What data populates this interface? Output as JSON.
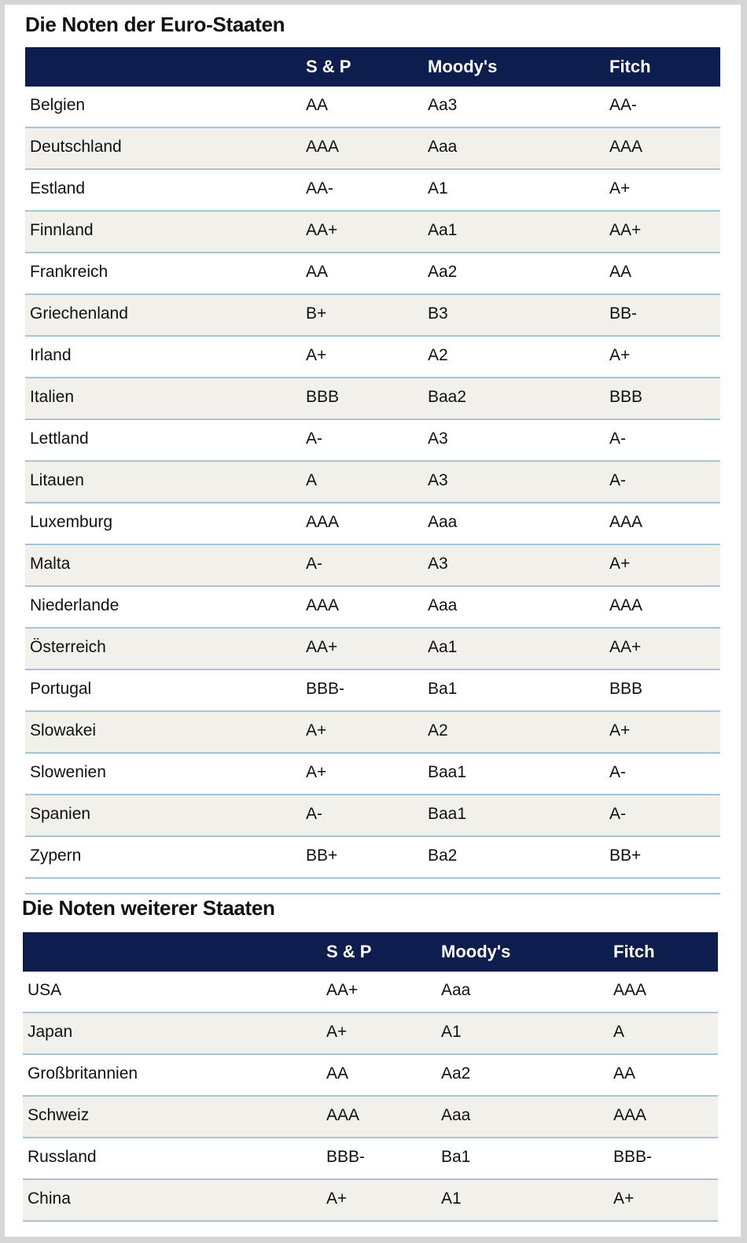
{
  "euro": {
    "title": "Die Noten der Euro-Staaten",
    "headers": [
      "",
      "S & P",
      "Moody's",
      "Fitch"
    ],
    "rows": [
      [
        "Belgien",
        "AA",
        "Aa3",
        "AA-"
      ],
      [
        "Deutschland",
        "AAA",
        "Aaa",
        "AAA"
      ],
      [
        "Estland",
        "AA-",
        "A1",
        "A+"
      ],
      [
        "Finnland",
        "AA+",
        "Aa1",
        "AA+"
      ],
      [
        "Frankreich",
        "AA",
        "Aa2",
        "AA"
      ],
      [
        "Griechenland",
        "B+",
        "B3",
        "BB-"
      ],
      [
        "Irland",
        "A+",
        "A2",
        "A+"
      ],
      [
        "Italien",
        "BBB",
        "Baa2",
        "BBB"
      ],
      [
        "Lettland",
        "A-",
        "A3",
        "A-"
      ],
      [
        "Litauen",
        "A",
        "A3",
        "A-"
      ],
      [
        "Luxemburg",
        "AAA",
        "Aaa",
        "AAA"
      ],
      [
        "Malta",
        "A-",
        "A3",
        "A+"
      ],
      [
        "Niederlande",
        "AAA",
        "Aaa",
        "AAA"
      ],
      [
        "Österreich",
        "AA+",
        "Aa1",
        "AA+"
      ],
      [
        "Portugal",
        "BBB-",
        "Ba1",
        "BBB"
      ],
      [
        "Slowakei",
        "A+",
        "A2",
        "A+"
      ],
      [
        "Slowenien",
        "A+",
        "Baa1",
        "A-"
      ],
      [
        "Spanien",
        "A-",
        "Baa1",
        "A-"
      ],
      [
        "Zypern",
        "BB+",
        "Ba2",
        "BB+"
      ]
    ]
  },
  "other": {
    "title": "Die Noten weiterer Staaten",
    "headers": [
      "",
      "S & P",
      "Moody's",
      "Fitch"
    ],
    "rows": [
      [
        "USA",
        "AA+",
        "Aaa",
        "AAA"
      ],
      [
        "Japan",
        "A+",
        "A1",
        "A"
      ],
      [
        "Großbritannien",
        "AA",
        "Aa2",
        "AA"
      ],
      [
        "Schweiz",
        "AAA",
        "Aaa",
        "AAA"
      ],
      [
        "Russland",
        "BBB-",
        "Ba1",
        "BBB-"
      ],
      [
        "China",
        "A+",
        "A1",
        "A+"
      ]
    ]
  },
  "colors": {
    "header_bg": "#0c1d4e",
    "row_alt_bg": "#f2f0ea",
    "divider": "#a7c4d6"
  }
}
